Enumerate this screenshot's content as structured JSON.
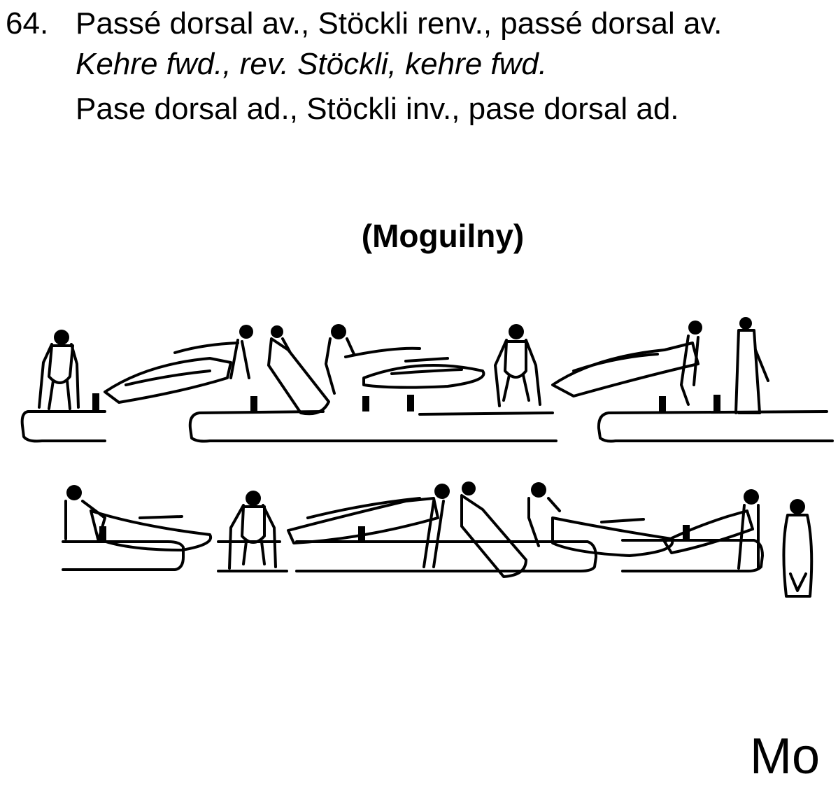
{
  "element": {
    "number": "64.",
    "lines": [
      "Passé dorsal av., Stöckli renv., passé dorsal av.",
      "Kehre fwd., rev. Stöckli, kehre fwd.",
      "Pase dorsal ad., Stöckli inv., pase dorsal ad."
    ],
    "name": "(Moguilny)",
    "difficulty_tag": "Mo"
  },
  "colors": {
    "ink": "#000000",
    "background": "#ffffff"
  }
}
